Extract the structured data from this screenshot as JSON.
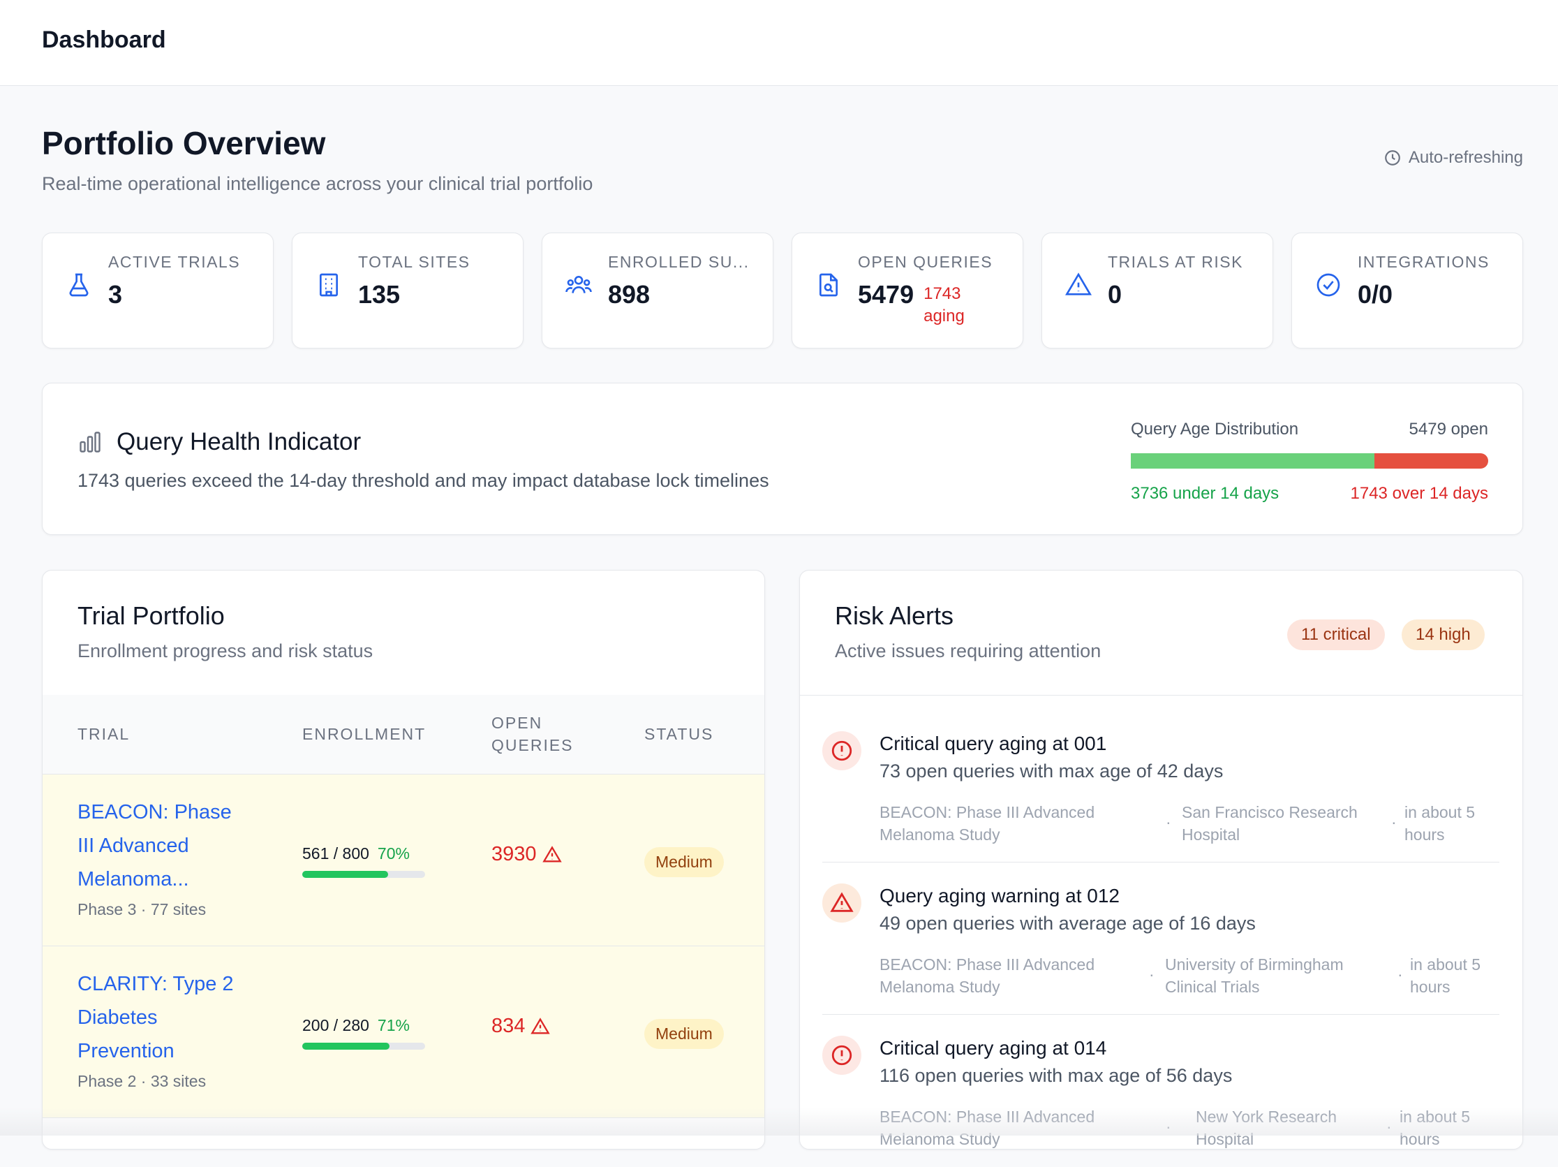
{
  "topbar": {
    "title": "Dashboard"
  },
  "header": {
    "title": "Portfolio Overview",
    "subtitle": "Real-time operational intelligence across your clinical trial portfolio",
    "auto_refresh": "Auto-refreshing"
  },
  "stats": [
    {
      "icon": "flask-icon",
      "label": "ACTIVE TRIALS",
      "value": "3"
    },
    {
      "icon": "building-icon",
      "label": "TOTAL SITES",
      "value": "135"
    },
    {
      "icon": "users-icon",
      "label": "ENROLLED SU...",
      "value": "898"
    },
    {
      "icon": "file-search-icon",
      "label": "OPEN QUERIES",
      "value": "5479",
      "extra": "1743 aging"
    },
    {
      "icon": "warning-icon",
      "label": "TRIALS AT RISK",
      "value": "0"
    },
    {
      "icon": "check-circle-icon",
      "label": "INTEGRATIONS",
      "value": "0/0"
    }
  ],
  "health": {
    "title": "Query Health Indicator",
    "subtitle": "1743 queries exceed the 14-day threshold and may impact database lock timelines",
    "dist_label": "Query Age Distribution",
    "open_label": "5479 open",
    "under_fraction": 0.682,
    "under_label": "3736 under 14 days",
    "over_label": "1743 over 14 days"
  },
  "portfolio": {
    "title": "Trial Portfolio",
    "subtitle": "Enrollment progress and risk status",
    "columns": [
      "TRIAL",
      "ENROLLMENT",
      "OPEN QUERIES",
      "STATUS"
    ],
    "rows": [
      {
        "name": "BEACON: Phase III Advanced Melanoma...",
        "meta": "Phase 3 · 77 sites",
        "enrollment": "561 / 800",
        "pct": "70%",
        "fraction": 0.7,
        "open_queries": "3930",
        "status": "Medium"
      },
      {
        "name": "CLARITY: Type 2 Diabetes Prevention",
        "meta": "Phase 2 · 33 sites",
        "enrollment": "200 / 280",
        "pct": "71%",
        "fraction": 0.71,
        "open_queries": "834",
        "status": "Medium"
      }
    ]
  },
  "alerts": {
    "title": "Risk Alerts",
    "subtitle": "Active issues requiring attention",
    "critical_badge": "11 critical",
    "high_badge": "14 high",
    "items": [
      {
        "severity": "critical",
        "icon": "alert-circle-icon",
        "title": "Critical query aging at 001",
        "desc": "73 open queries with max age of 42 days",
        "trial": "BEACON: Phase III Advanced Melanoma Study",
        "site": "San Francisco Research Hospital",
        "time": "in about 5 hours"
      },
      {
        "severity": "warning",
        "icon": "alert-triangle-icon",
        "title": "Query aging warning at 012",
        "desc": "49 open queries with average age of 16 days",
        "trial": "BEACON: Phase III Advanced Melanoma Study",
        "site": "University of Birmingham Clinical Trials",
        "time": "in about 5 hours"
      },
      {
        "severity": "critical",
        "icon": "alert-circle-icon",
        "title": "Critical query aging at 014",
        "desc": "116 open queries with max age of 56 days",
        "trial": "BEACON: Phase III Advanced Melanoma Study",
        "site": "New York Research Hospital",
        "time": "in about 5 hours"
      }
    ]
  },
  "colors": {
    "accent": "#2563eb",
    "danger": "#dc2626",
    "success": "#16a34a",
    "warning_bg": "#fef3c7"
  }
}
